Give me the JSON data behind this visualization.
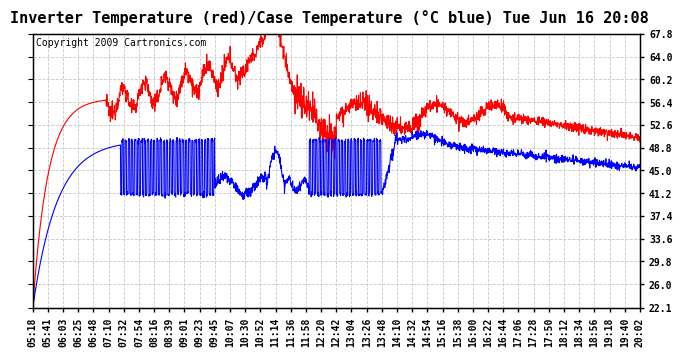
{
  "title": "Inverter Temperature (red)/Case Temperature (°C blue) Tue Jun 16 20:08",
  "copyright": "Copyright 2009 Cartronics.com",
  "ylabel_right_ticks": [
    22.1,
    26.0,
    29.8,
    33.6,
    37.4,
    41.2,
    45.0,
    48.8,
    52.6,
    56.4,
    60.2,
    64.0,
    67.8
  ],
  "ylim": [
    22.1,
    67.8
  ],
  "background_color": "#ffffff",
  "plot_bg_color": "#ffffff",
  "grid_color": "#c8c8c8",
  "red_color": "#ff0000",
  "blue_color": "#0000ff",
  "title_fontsize": 11,
  "copyright_fontsize": 7,
  "tick_fontsize": 7,
  "x_tick_labels": [
    "05:18",
    "05:41",
    "06:03",
    "06:25",
    "06:48",
    "07:10",
    "07:32",
    "07:54",
    "08:16",
    "08:39",
    "09:01",
    "09:23",
    "09:45",
    "10:07",
    "10:30",
    "10:52",
    "11:14",
    "11:36",
    "11:58",
    "12:20",
    "12:42",
    "13:04",
    "13:26",
    "13:48",
    "14:10",
    "14:32",
    "14:54",
    "15:16",
    "15:38",
    "16:00",
    "16:22",
    "16:44",
    "17:06",
    "17:28",
    "17:50",
    "18:12",
    "18:34",
    "18:56",
    "19:18",
    "19:40",
    "20:02"
  ]
}
